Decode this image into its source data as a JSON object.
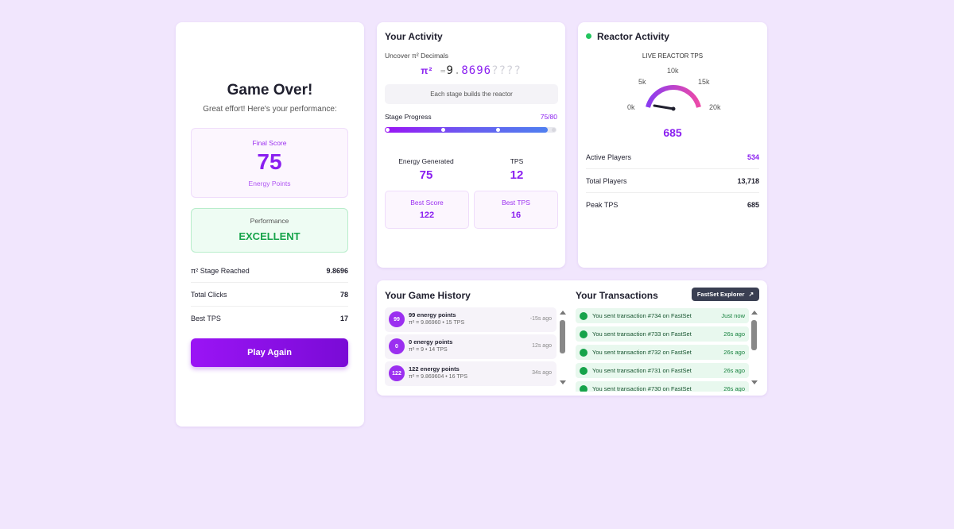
{
  "game_over": {
    "title": "Game Over!",
    "subtitle": "Great effort! Here's your performance:",
    "final_score": {
      "label": "Final Score",
      "value": 75,
      "unit": "Energy Points"
    },
    "performance": {
      "label": "Performance",
      "value": "EXCELLENT"
    },
    "stats": [
      {
        "label": "π² Stage Reached",
        "value": "9.8696"
      },
      {
        "label": "Total Clicks",
        "value": 78
      },
      {
        "label": "Best TPS",
        "value": 17
      }
    ],
    "button": "Play Again"
  },
  "activity": {
    "title": "Your Activity",
    "decimals_label": "Uncover π² Decimals",
    "pi_symbol": "π²",
    "equals": "=",
    "integer": "9",
    "dot": ".",
    "revealed": "8696",
    "hidden": "????",
    "hint": "Each stage builds the reactor",
    "progress_label": "Stage Progress",
    "progress_value": "75/80",
    "energy": {
      "label": "Energy Generated",
      "value": 75
    },
    "tps": {
      "label": "TPS",
      "value": 12
    },
    "best_score": {
      "label": "Best Score",
      "value": 122
    },
    "best_tps": {
      "label": "Best TPS",
      "value": 16
    }
  },
  "reactor": {
    "title": "Reactor Activity",
    "gauge_label": "LIVE REACTOR TPS",
    "gauge_ticks": [
      "0k",
      "5k",
      "10k",
      "15k",
      "20k"
    ],
    "tps": 685,
    "stats": [
      {
        "label": "Active Players",
        "value": 534
      },
      {
        "label": "Total Players",
        "value": "13,718"
      },
      {
        "label": "Peak TPS",
        "value": 685
      }
    ]
  },
  "history": {
    "title": "Your Game History",
    "items": [
      {
        "badge": "99",
        "points": "99 energy points",
        "detail": "π² = 9.86960 • 15 TPS",
        "time": "-15s ago"
      },
      {
        "badge": "0",
        "points": "0 energy points",
        "detail": "π² = 9 • 14 TPS",
        "time": "12s ago"
      },
      {
        "badge": "122",
        "points": "122 energy points",
        "detail": "π² = 9.869604 • 16 TPS",
        "time": "34s ago"
      }
    ]
  },
  "transactions": {
    "title": "Your Transactions",
    "button": "FastSet Explorer",
    "items": [
      {
        "text": "You sent transaction #734 on FastSet",
        "time": "Just now"
      },
      {
        "text": "You sent transaction #733 on FastSet",
        "time": "26s ago"
      },
      {
        "text": "You sent transaction #732 on FastSet",
        "time": "26s ago"
      },
      {
        "text": "You sent transaction #731 on FastSet",
        "time": "26s ago"
      },
      {
        "text": "You sent transaction #730 on FastSet",
        "time": "26s ago"
      }
    ]
  }
}
